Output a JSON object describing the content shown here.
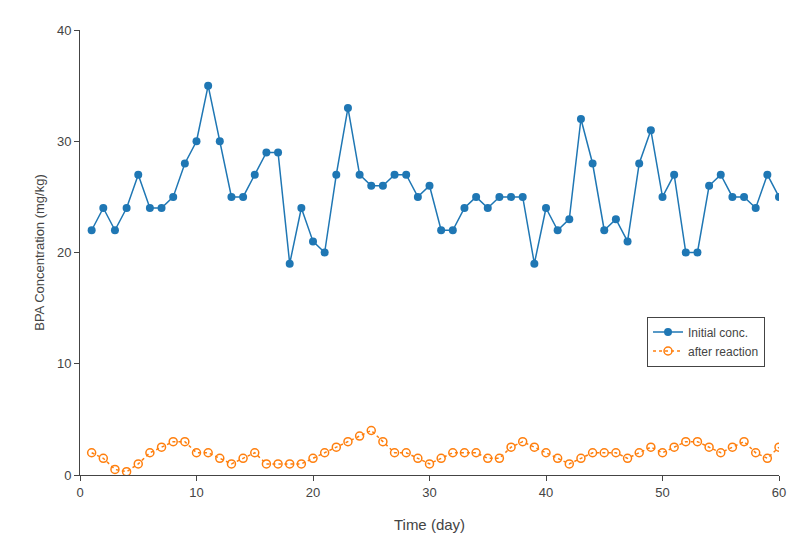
{
  "chart_data": {
    "type": "line",
    "x_label": "Time (day)",
    "y_label": "BPA Concentration (mg/kg)",
    "x": [
      1,
      2,
      3,
      4,
      5,
      6,
      7,
      8,
      9,
      10,
      11,
      12,
      13,
      14,
      15,
      16,
      17,
      18,
      19,
      20,
      21,
      22,
      23,
      24,
      25,
      26,
      27,
      28,
      29,
      30,
      31,
      32,
      33,
      34,
      35,
      36,
      37,
      38,
      39,
      40,
      41,
      42,
      43,
      44,
      45,
      46,
      47,
      48,
      49,
      50,
      51,
      52,
      53,
      54,
      55,
      56,
      57,
      58,
      59,
      60
    ],
    "series": [
      {
        "name": "Initial conc.",
        "marker": "circle",
        "line_style": "solid",
        "values": [
          22,
          24,
          22,
          24,
          27,
          24,
          24,
          25,
          28,
          30,
          35,
          30,
          25,
          25,
          27,
          29,
          29,
          19,
          24,
          21,
          20,
          27,
          33,
          27,
          26,
          26,
          27,
          27,
          25,
          26,
          22,
          22,
          24,
          25,
          24,
          25,
          25,
          25,
          19,
          24,
          22,
          23,
          32,
          28,
          22,
          23,
          21,
          28,
          31,
          25,
          27,
          20,
          20,
          26,
          27,
          25,
          25,
          24,
          27,
          25
        ]
      },
      {
        "name": "after reaction",
        "marker": "circle-open",
        "line_style": "dot",
        "values": [
          2.0,
          1.5,
          0.5,
          0.3,
          1.0,
          2.0,
          2.5,
          3.0,
          3.0,
          2.0,
          2.0,
          1.5,
          1.0,
          1.5,
          2.0,
          1.0,
          1.0,
          1.0,
          1.0,
          1.5,
          2.0,
          2.5,
          3.0,
          3.5,
          4.0,
          3.0,
          2.0,
          2.0,
          1.5,
          1.0,
          1.5,
          2.0,
          2.0,
          2.0,
          1.5,
          1.5,
          2.5,
          3.0,
          2.5,
          2.0,
          1.5,
          1.0,
          1.5,
          2.0,
          2.0,
          2.0,
          1.5,
          2.0,
          2.5,
          2.0,
          2.5,
          3.0,
          3.0,
          2.5,
          2.0,
          2.5,
          3.0,
          2.0,
          1.5,
          2.5
        ]
      }
    ],
    "xlim": [
      0,
      60
    ],
    "ylim": [
      0,
      40
    ],
    "xticks": [
      0,
      10,
      20,
      30,
      40,
      50,
      60
    ],
    "yticks": [
      0,
      10,
      20,
      30,
      40
    ],
    "grid": false,
    "legend": "center right"
  }
}
